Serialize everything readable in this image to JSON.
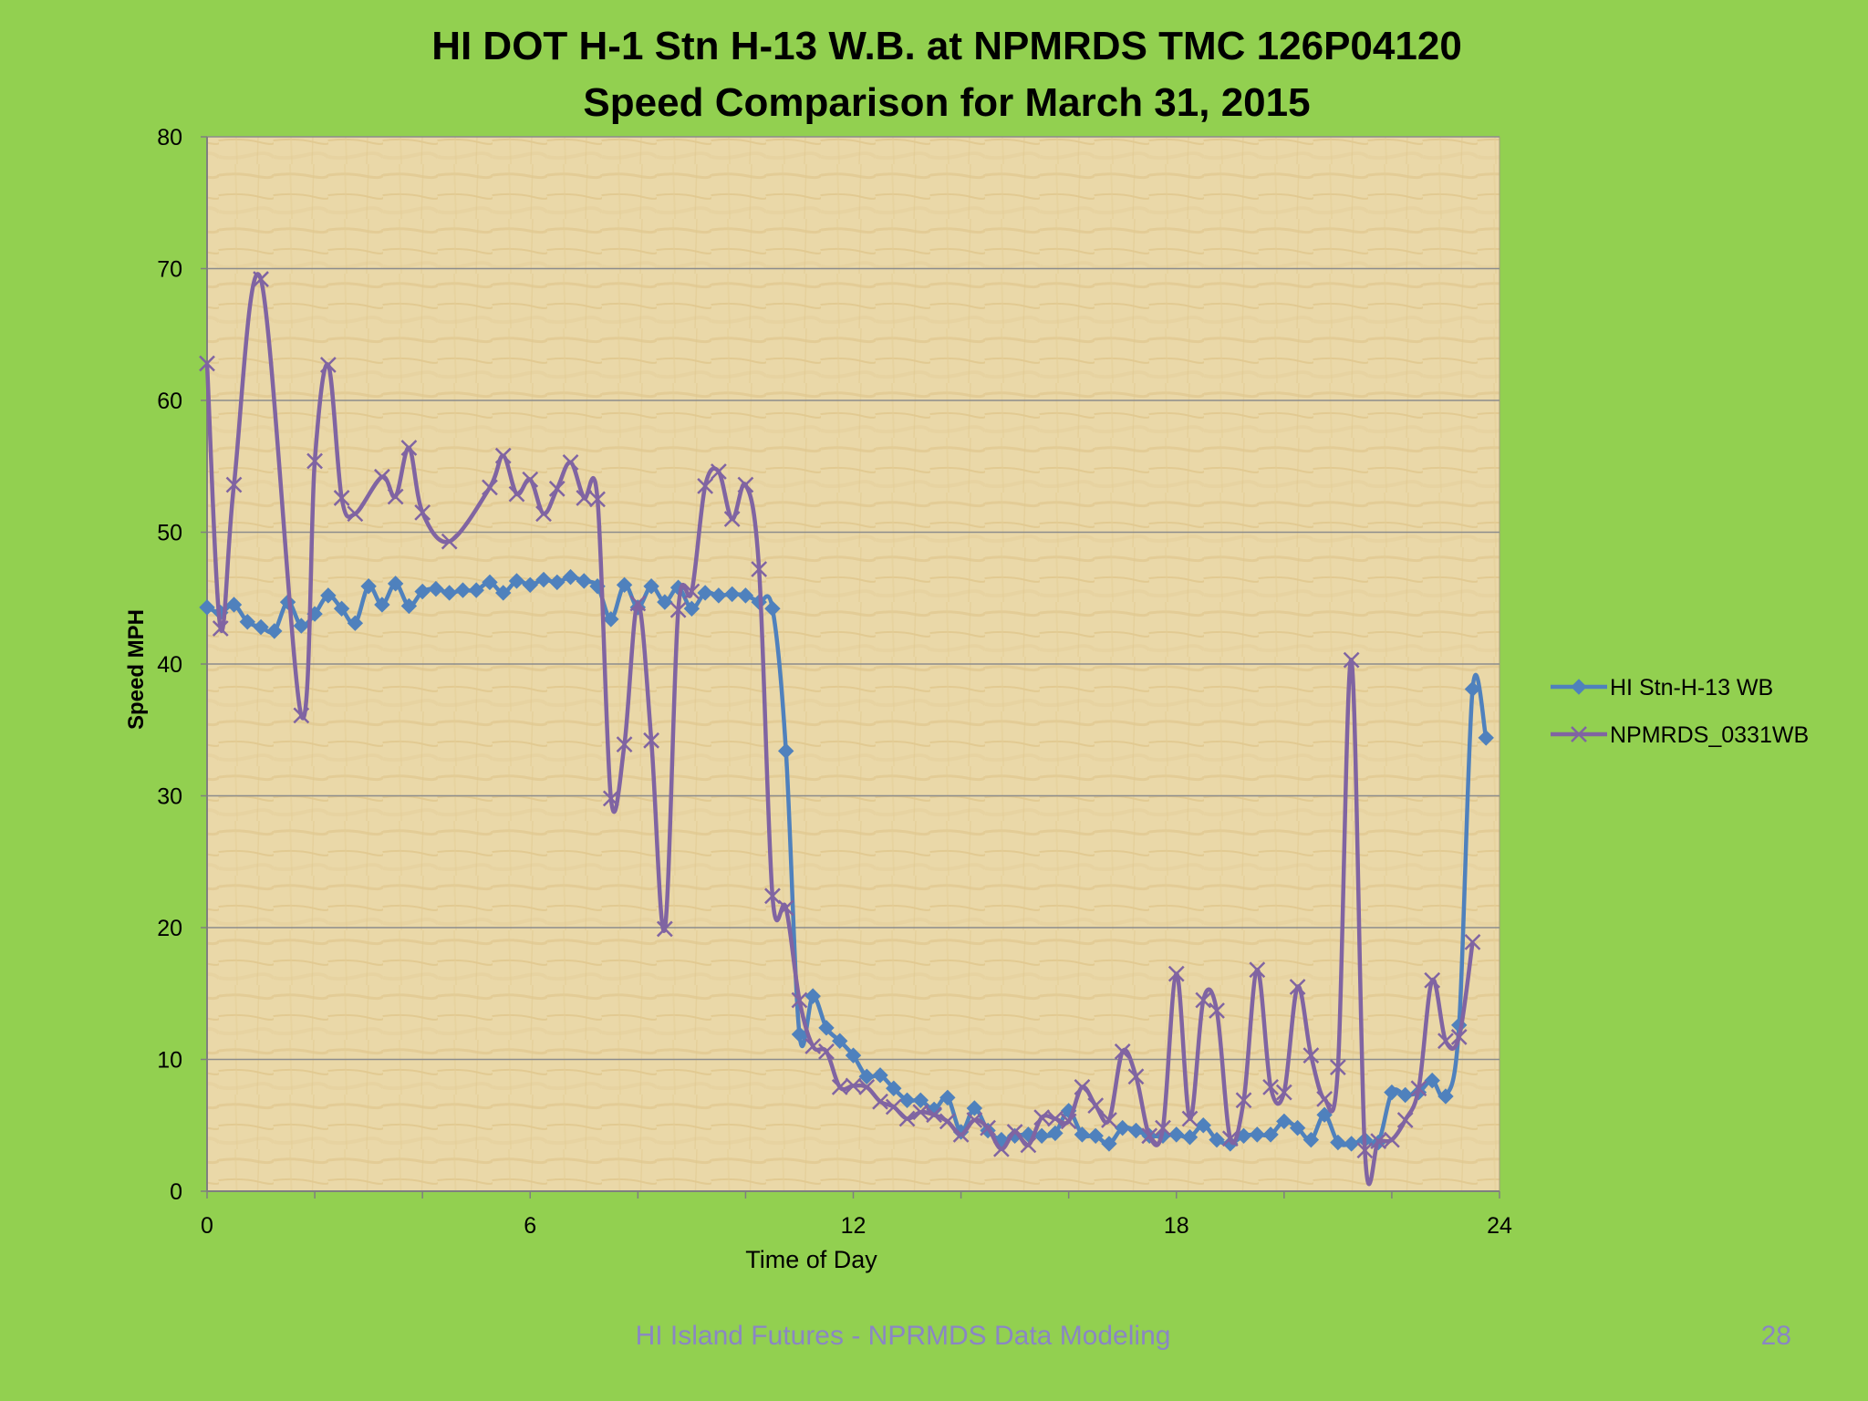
{
  "footer": {
    "text": "HI Island Futures - NPRMDS Data Modeling",
    "page_number": "28"
  },
  "colors": {
    "slide_background": "#92d050",
    "plot_background": "#ead8a8",
    "gridline": "#8c8c8c",
    "series_stn": "#4f81bd",
    "series_npmrds": "#8064a2",
    "footer_text": "#8a86c4"
  },
  "chart_data": {
    "type": "line",
    "title": [
      "HI DOT H-1 Stn H-13 W.B. at NPMRDS TMC 126P04120",
      "Speed Comparison for March 31, 2015"
    ],
    "xlabel": "Time of Day",
    "ylabel": "Speed MPH",
    "xlim": [
      0,
      24
    ],
    "ylim": [
      0,
      80
    ],
    "xticks": [
      0,
      6,
      12,
      18,
      24
    ],
    "yticks": [
      0,
      10,
      20,
      30,
      40,
      50,
      60,
      70,
      80
    ],
    "grid": true,
    "legend_position": "right",
    "series": [
      {
        "name": "HI Stn-H-13 WB",
        "marker": "diamond",
        "color": "#4f81bd",
        "x": [
          0.0,
          0.25,
          0.5,
          0.75,
          1.0,
          1.25,
          1.5,
          1.75,
          2.0,
          2.25,
          2.5,
          2.75,
          3.0,
          3.25,
          3.5,
          3.75,
          4.0,
          4.25,
          4.5,
          4.75,
          5.0,
          5.25,
          5.5,
          5.75,
          6.0,
          6.25,
          6.5,
          6.75,
          7.0,
          7.25,
          7.5,
          7.75,
          8.0,
          8.25,
          8.5,
          8.75,
          9.0,
          9.25,
          9.5,
          9.75,
          10.0,
          10.25,
          10.5,
          10.75,
          11.0,
          11.25,
          11.5,
          11.75,
          12.0,
          12.25,
          12.5,
          12.75,
          13.0,
          13.25,
          13.5,
          13.75,
          14.0,
          14.25,
          14.5,
          14.75,
          15.0,
          15.25,
          15.5,
          15.75,
          16.0,
          16.25,
          16.5,
          16.75,
          17.0,
          17.25,
          17.5,
          17.75,
          18.0,
          18.25,
          18.5,
          18.75,
          19.0,
          19.25,
          19.5,
          19.75,
          20.0,
          20.25,
          20.5,
          20.75,
          21.0,
          21.25,
          21.5,
          21.75,
          22.0,
          22.25,
          22.5,
          22.75,
          23.0,
          23.25,
          23.5,
          23.75
        ],
        "values": [
          44.3,
          43.9,
          44.5,
          43.2,
          42.8,
          42.5,
          44.7,
          42.9,
          43.8,
          45.2,
          44.2,
          43.1,
          45.9,
          44.5,
          46.1,
          44.4,
          45.5,
          45.7,
          45.4,
          45.6,
          45.6,
          46.2,
          45.4,
          46.3,
          46.0,
          46.4,
          46.2,
          46.6,
          46.3,
          45.9,
          43.4,
          46.0,
          44.3,
          45.9,
          44.7,
          45.8,
          44.2,
          45.4,
          45.2,
          45.3,
          45.2,
          44.7,
          44.2,
          33.4,
          11.9,
          14.8,
          12.4,
          11.4,
          10.3,
          8.7,
          8.8,
          7.8,
          6.9,
          6.9,
          6.2,
          7.1,
          4.5,
          6.3,
          4.6,
          3.9,
          4.2,
          4.3,
          4.2,
          4.4,
          6.1,
          4.3,
          4.2,
          3.6,
          4.8,
          4.6,
          4.2,
          4.2,
          4.3,
          4.1,
          5.0,
          3.9,
          3.6,
          4.2,
          4.3,
          4.3,
          5.3,
          4.8,
          3.9,
          5.8,
          3.7,
          3.6,
          3.9,
          3.7,
          7.5,
          7.3,
          7.5,
          8.4,
          7.2,
          12.6,
          38.1,
          34.4
        ]
      },
      {
        "name": "NPMRDS_0331WB",
        "marker": "x",
        "color": "#8064a2",
        "x": [
          0.0,
          0.25,
          0.5,
          1.0,
          1.75,
          2.0,
          2.25,
          2.5,
          2.75,
          3.25,
          3.5,
          3.75,
          4.0,
          4.5,
          5.25,
          5.5,
          5.75,
          6.0,
          6.25,
          6.5,
          6.75,
          7.0,
          7.25,
          7.5,
          7.75,
          8.0,
          8.25,
          8.5,
          8.75,
          9.0,
          9.25,
          9.5,
          9.75,
          10.0,
          10.25,
          10.5,
          10.75,
          11.0,
          11.25,
          11.5,
          11.75,
          12.0,
          12.25,
          12.5,
          12.75,
          13.0,
          13.25,
          13.5,
          13.75,
          14.0,
          14.25,
          14.5,
          14.75,
          15.0,
          15.25,
          15.5,
          15.75,
          16.0,
          16.25,
          16.5,
          16.75,
          17.0,
          17.25,
          17.5,
          17.75,
          18.0,
          18.25,
          18.5,
          18.75,
          19.0,
          19.25,
          19.5,
          19.75,
          20.0,
          20.25,
          20.5,
          20.75,
          21.0,
          21.25,
          21.5,
          21.75,
          22.0,
          22.25,
          22.5,
          22.75,
          23.0,
          23.25,
          23.5,
          23.75
        ],
        "values": [
          62.8,
          42.7,
          53.6,
          69.2,
          36.1,
          55.4,
          62.7,
          52.6,
          51.4,
          54.2,
          52.7,
          56.4,
          51.5,
          49.3,
          53.4,
          55.8,
          52.9,
          54.0,
          51.4,
          53.3,
          55.3,
          52.6,
          52.5,
          29.8,
          33.9,
          44.6,
          34.2,
          19.9,
          44.1,
          45.5,
          53.5,
          54.6,
          51.0,
          53.6,
          47.2,
          22.4,
          21.5,
          14.5,
          11.0,
          10.6,
          7.9,
          8.0,
          7.9,
          6.8,
          6.4,
          5.5,
          6.0,
          5.8,
          5.3,
          4.3,
          5.4,
          4.8,
          3.2,
          4.5,
          3.5,
          5.6,
          5.5,
          5.3,
          7.9,
          6.5,
          5.4,
          10.6,
          8.7,
          4.2,
          4.8,
          16.5,
          5.5,
          14.5,
          13.7,
          4.0,
          6.9,
          16.8,
          7.9,
          7.5,
          15.5,
          10.3,
          7.0,
          9.4,
          40.3,
          3.1,
          3.8,
          3.9,
          5.4,
          7.8,
          16.0,
          11.4,
          11.7,
          18.9,
          null
        ]
      }
    ]
  }
}
